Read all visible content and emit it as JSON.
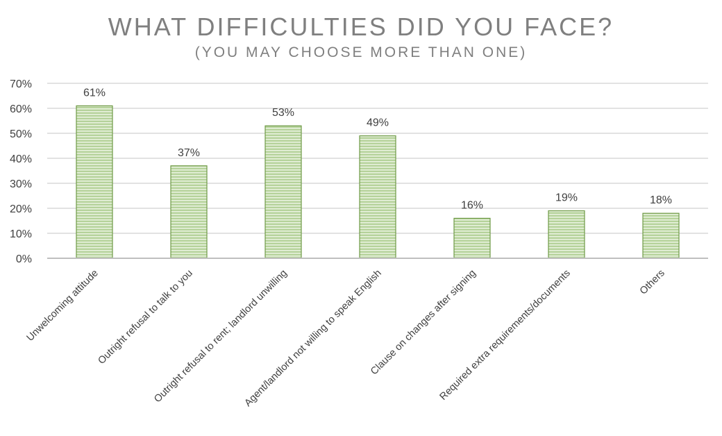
{
  "header": {
    "title": "WHAT DIFFICULTIES DID YOU FACE?",
    "subtitle": "(YOU MAY CHOOSE MORE THAN ONE)"
  },
  "colors": {
    "bar_fill": "#b5d29a",
    "bar_stripe": "#e9f2df",
    "bar_edge": "#6f9a46",
    "gridline": "#d9d9d9",
    "axis_line": "#bfbfbf",
    "text": "#3f3f3f",
    "title_text": "#7f7f7f"
  },
  "chart_data": {
    "type": "bar",
    "title": "WHAT DIFFICULTIES DID YOU FACE?",
    "subtitle": "(YOU MAY CHOOSE MORE THAN ONE)",
    "categories": [
      "Unwelcoming attitude",
      "Outright refusal to talk to you",
      "Outright refusal to rent; landlord unwilling",
      "Agent/landlord not willing to speak English",
      "Clause on changes after signing",
      "Required extra requirements/documents",
      "Others"
    ],
    "values": [
      61,
      37,
      53,
      49,
      16,
      19,
      18
    ],
    "data_labels": [
      "61%",
      "37%",
      "53%",
      "49%",
      "16%",
      "19%",
      "18%"
    ],
    "ylim": [
      0,
      70
    ],
    "yticks": [
      0,
      10,
      20,
      30,
      40,
      50,
      60,
      70
    ],
    "ytick_labels": [
      "0%",
      "10%",
      "20%",
      "30%",
      "40%",
      "50%",
      "60%",
      "70%"
    ],
    "xlabel": "",
    "ylabel": "",
    "grid": true,
    "legend": "none"
  }
}
